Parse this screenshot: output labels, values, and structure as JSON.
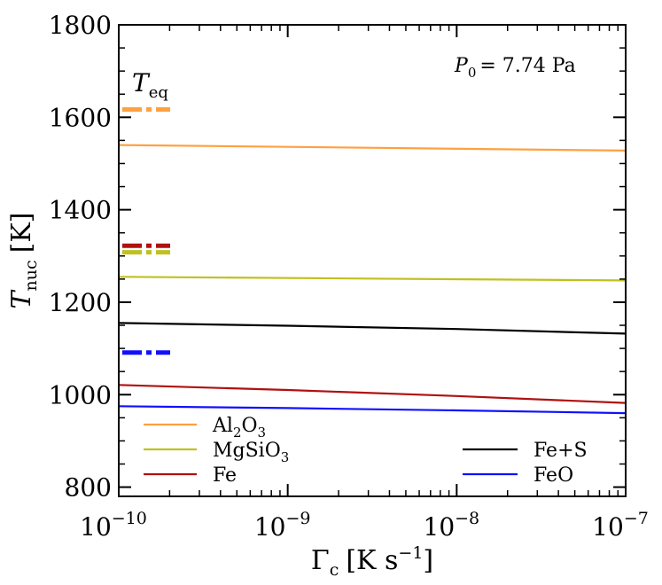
{
  "chart_data": {
    "type": "line",
    "xscale": "log",
    "xlim": [
      1e-10,
      1e-07
    ],
    "ylim": [
      780,
      1800
    ],
    "grid": false,
    "xlabel": {
      "main": "Γ",
      "sub": "c",
      "unit_pre": "[K s",
      "sup": "−1",
      "unit_post": "]"
    },
    "ylabel": {
      "main": "T",
      "sub": "nuc",
      "unit": "[K]"
    },
    "annotation_p0": {
      "main": "P",
      "sub": "0",
      "text": "=  7.74 Pa"
    },
    "annotation_teq": {
      "main": "T",
      "sub": "eq"
    },
    "xticks": [
      {
        "value": 1e-10,
        "base": "10",
        "exp": "−10"
      },
      {
        "value": 1e-09,
        "base": "10",
        "exp": "−9"
      },
      {
        "value": 1e-08,
        "base": "10",
        "exp": "−8"
      },
      {
        "value": 1e-07,
        "base": "10",
        "exp": "−7"
      }
    ],
    "yticks": [
      800,
      1000,
      1200,
      1400,
      1600,
      1800
    ],
    "series": [
      {
        "name": "Al2O3",
        "parts": [
          {
            "t": "Al"
          },
          {
            "t": "2",
            "sub": true
          },
          {
            "t": "O"
          },
          {
            "t": "3",
            "sub": true
          }
        ],
        "color": "#ffa040",
        "x": [
          1e-10,
          1e-07
        ],
        "y": [
          1540,
          1528
        ],
        "teq": 1617,
        "legend": "left-1"
      },
      {
        "name": "MgSiO3",
        "parts": [
          {
            "t": "MgSiO"
          },
          {
            "t": "3",
            "sub": true
          }
        ],
        "color": "#c0c020",
        "x": [
          1e-10,
          1e-07
        ],
        "y": [
          1255,
          1247
        ],
        "teq": 1308,
        "legend": "left-2"
      },
      {
        "name": "Fe",
        "parts": [
          {
            "t": "Fe"
          }
        ],
        "color": "#b01010",
        "x": [
          1e-10,
          1e-09,
          1e-08,
          1e-07
        ],
        "y": [
          1021,
          1010,
          997,
          982
        ],
        "teq": 1322,
        "legend": "left-3"
      },
      {
        "name": "Fe+S",
        "parts": [
          {
            "t": "Fe+S"
          }
        ],
        "color": "#000000",
        "x": [
          1e-10,
          1e-09,
          1e-08,
          1e-07
        ],
        "y": [
          1155,
          1149,
          1142,
          1132
        ],
        "teq": null,
        "legend": "right-1"
      },
      {
        "name": "FeO",
        "parts": [
          {
            "t": "FeO"
          }
        ],
        "color": "#1010ff",
        "x": [
          1e-10,
          1e-09,
          1e-08,
          1e-07
        ],
        "y": [
          975,
          971,
          966,
          960
        ],
        "teq": 1091,
        "legend": "right-2"
      }
    ]
  }
}
